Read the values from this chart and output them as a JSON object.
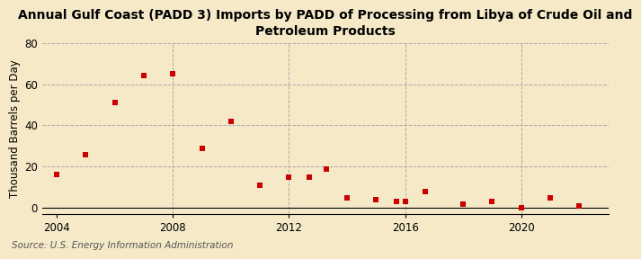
{
  "title_line1": "Annual Gulf Coast (PADD 3) Imports by PADD of Processing from Libya of Crude Oil and",
  "title_line2": "Petroleum Products",
  "ylabel": "Thousand Barrels per Day",
  "source": "Source: U.S. Energy Information Administration",
  "background_color": "#f5e9c8",
  "plot_background_color": "#f5e9c8",
  "data_color": "#cc0000",
  "years": [
    2004,
    2005,
    2006,
    2007,
    2008,
    2009,
    2010,
    2011,
    2012,
    2012.7,
    2013.3,
    2014,
    2015,
    2015.7,
    2016,
    2016.7,
    2018,
    2019,
    2020,
    2021,
    2022
  ],
  "values": [
    16,
    26,
    51,
    64,
    65,
    29,
    42,
    11,
    15,
    15,
    19,
    5,
    4,
    3,
    3,
    8,
    2,
    3,
    0,
    5,
    1
  ],
  "xlim": [
    2003.5,
    2023.0
  ],
  "ylim": [
    -3,
    80
  ],
  "yticks": [
    0,
    20,
    40,
    60,
    80
  ],
  "xticks": [
    2004,
    2008,
    2012,
    2016,
    2020
  ],
  "vlines": [
    2008,
    2012,
    2016,
    2020
  ],
  "grid_color": "#aaaaaa",
  "title_fontsize": 10,
  "axis_fontsize": 8.5,
  "source_fontsize": 7.5
}
